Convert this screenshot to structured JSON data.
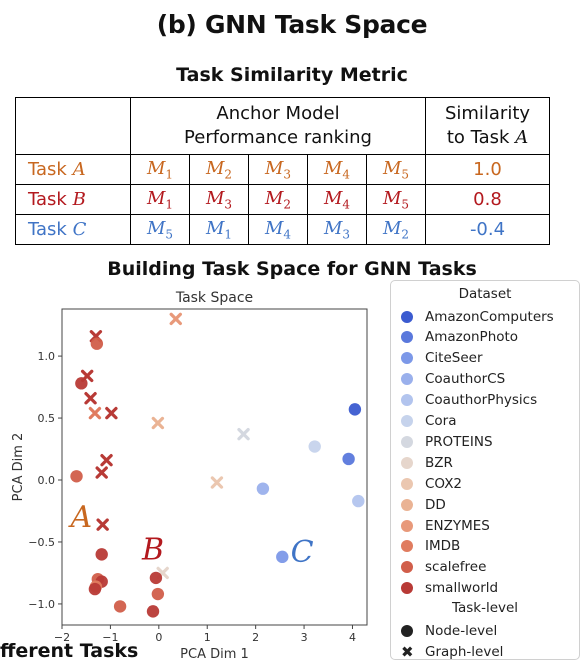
{
  "panel_title": "(b) GNN Task Space",
  "metric_title": "Task Similarity Metric",
  "table": {
    "header_ranking_l1": "Anchor Model",
    "header_ranking_l2": "Performance ranking",
    "header_sim_l1": "Similarity",
    "header_sim_l2": "to Task",
    "header_sim_task": "A",
    "rows": [
      {
        "task_prefix": "Task",
        "task_letter": "A",
        "color": "#c8671f",
        "ranking": [
          {
            "m": "M",
            "sub": "1"
          },
          {
            "m": "M",
            "sub": "2"
          },
          {
            "m": "M",
            "sub": "3"
          },
          {
            "m": "M",
            "sub": "4"
          },
          {
            "m": "M",
            "sub": "5"
          }
        ],
        "similarity": "1.0"
      },
      {
        "task_prefix": "Task",
        "task_letter": "B",
        "color": "#b3191e",
        "ranking": [
          {
            "m": "M",
            "sub": "1"
          },
          {
            "m": "M",
            "sub": "3"
          },
          {
            "m": "M",
            "sub": "2"
          },
          {
            "m": "M",
            "sub": "4"
          },
          {
            "m": "M",
            "sub": "5"
          }
        ],
        "similarity": "0.8"
      },
      {
        "task_prefix": "Task",
        "task_letter": "C",
        "color": "#3f74c6",
        "ranking": [
          {
            "m": "M",
            "sub": "5"
          },
          {
            "m": "M",
            "sub": "1"
          },
          {
            "m": "M",
            "sub": "4"
          },
          {
            "m": "M",
            "sub": "3"
          },
          {
            "m": "M",
            "sub": "2"
          }
        ],
        "similarity": "-0.4"
      }
    ]
  },
  "space_title": "Building Task Space for GNN Tasks",
  "clipped_text": "fferent Tasks",
  "chart_data": {
    "type": "scatter",
    "title": "Task Space",
    "xlabel": "PCA Dim 1",
    "ylabel": "PCA Dim 2",
    "xlim": [
      -2.0,
      4.3
    ],
    "ylim": [
      -1.17,
      1.38
    ],
    "xticks": [
      -2,
      -1,
      0,
      1,
      2,
      3,
      4
    ],
    "yticks": [
      -1.0,
      -0.5,
      0.0,
      0.5,
      1.0
    ],
    "xtick_labels": [
      "−2",
      "−1",
      "0",
      "1",
      "2",
      "3",
      "4"
    ],
    "ytick_labels": [
      "−1.0",
      "−0.5",
      "0.0",
      "0.5",
      "1.0"
    ],
    "grid": false,
    "legend_position": "right",
    "legend_title_dataset": "Dataset",
    "legend_title_level": "Task-level",
    "datasets": [
      {
        "name": "AmazonComputers",
        "color": "#3b5bd0"
      },
      {
        "name": "AmazonPhoto",
        "color": "#5a78dc"
      },
      {
        "name": "CiteSeer",
        "color": "#7c98e8"
      },
      {
        "name": "CoauthorCS",
        "color": "#9ab0ec"
      },
      {
        "name": "CoauthorPhysics",
        "color": "#b2c4ee"
      },
      {
        "name": "Cora",
        "color": "#c6d3ec"
      },
      {
        "name": "PROTEINS",
        "color": "#d4d8e0"
      },
      {
        "name": "BZR",
        "color": "#e6d6cc"
      },
      {
        "name": "COX2",
        "color": "#ebc7b0"
      },
      {
        "name": "DD",
        "color": "#eab394"
      },
      {
        "name": "ENZYMES",
        "color": "#e8997a"
      },
      {
        "name": "IMDB",
        "color": "#e07c5f"
      },
      {
        "name": "scalefree",
        "color": "#d15e4a"
      },
      {
        "name": "smallworld",
        "color": "#b83a36"
      }
    ],
    "levels": [
      {
        "name": "Node-level",
        "marker": "circle"
      },
      {
        "name": "Graph-level",
        "marker": "x"
      }
    ],
    "points": [
      {
        "x": 4.05,
        "y": 0.57,
        "dataset": "AmazonComputers",
        "level": "Node-level"
      },
      {
        "x": 3.92,
        "y": 0.17,
        "dataset": "AmazonPhoto",
        "level": "Node-level"
      },
      {
        "x": 2.55,
        "y": -0.62,
        "dataset": "CiteSeer",
        "level": "Node-level"
      },
      {
        "x": 2.15,
        "y": -0.07,
        "dataset": "CoauthorCS",
        "level": "Node-level"
      },
      {
        "x": 4.12,
        "y": -0.17,
        "dataset": "CoauthorPhysics",
        "level": "Node-level"
      },
      {
        "x": 3.22,
        "y": 0.27,
        "dataset": "Cora",
        "level": "Node-level"
      },
      {
        "x": 1.75,
        "y": 0.37,
        "dataset": "PROTEINS",
        "level": "Graph-level"
      },
      {
        "x": 0.08,
        "y": -0.75,
        "dataset": "BZR",
        "level": "Graph-level"
      },
      {
        "x": 1.2,
        "y": -0.02,
        "dataset": "COX2",
        "level": "Graph-level"
      },
      {
        "x": -0.02,
        "y": 0.46,
        "dataset": "DD",
        "level": "Graph-level"
      },
      {
        "x": 0.35,
        "y": 1.3,
        "dataset": "ENZYMES",
        "level": "Graph-level"
      },
      {
        "x": -1.32,
        "y": 0.54,
        "dataset": "IMDB",
        "level": "Graph-level"
      },
      {
        "x": -1.7,
        "y": 0.03,
        "dataset": "scalefree",
        "level": "Node-level"
      },
      {
        "x": -1.6,
        "y": 0.78,
        "dataset": "smallworld",
        "level": "Node-level"
      },
      {
        "x": -1.48,
        "y": 0.84,
        "dataset": "smallworld",
        "level": "Graph-level"
      },
      {
        "x": -1.41,
        "y": 0.66,
        "dataset": "smallworld",
        "level": "Graph-level"
      },
      {
        "x": -1.3,
        "y": 1.16,
        "dataset": "smallworld",
        "level": "Graph-level"
      },
      {
        "x": -0.98,
        "y": 0.54,
        "dataset": "smallworld",
        "level": "Graph-level"
      },
      {
        "x": -1.08,
        "y": 0.16,
        "dataset": "smallworld",
        "level": "Graph-level"
      },
      {
        "x": -1.18,
        "y": 0.06,
        "dataset": "smallworld",
        "level": "Graph-level"
      },
      {
        "x": -1.16,
        "y": -0.36,
        "dataset": "smallworld",
        "level": "Graph-level"
      },
      {
        "x": -1.28,
        "y": 1.1,
        "dataset": "scalefree",
        "level": "Node-level"
      },
      {
        "x": -1.18,
        "y": -0.6,
        "dataset": "smallworld",
        "level": "Node-level"
      },
      {
        "x": -1.26,
        "y": -0.8,
        "dataset": "scalefree",
        "level": "Node-level"
      },
      {
        "x": -1.18,
        "y": -0.82,
        "dataset": "smallworld",
        "level": "Node-level"
      },
      {
        "x": -1.3,
        "y": -0.86,
        "dataset": "IMDB",
        "level": "Node-level"
      },
      {
        "x": -1.32,
        "y": -0.88,
        "dataset": "smallworld",
        "level": "Node-level"
      },
      {
        "x": -0.8,
        "y": -1.02,
        "dataset": "scalefree",
        "level": "Node-level"
      },
      {
        "x": -0.12,
        "y": -1.06,
        "dataset": "smallworld",
        "level": "Node-level"
      },
      {
        "x": -0.02,
        "y": -0.92,
        "dataset": "scalefree",
        "level": "Node-level"
      },
      {
        "x": -0.06,
        "y": -0.79,
        "dataset": "smallworld",
        "level": "Node-level"
      }
    ],
    "annotations": [
      {
        "text": "A",
        "x": -1.6,
        "y": -0.38,
        "color": "#c8671f"
      },
      {
        "text": "B",
        "x": -0.12,
        "y": -0.64,
        "color": "#b3191e"
      },
      {
        "text": "C",
        "x": 2.96,
        "y": -0.66,
        "color": "#3f74c6"
      }
    ]
  }
}
